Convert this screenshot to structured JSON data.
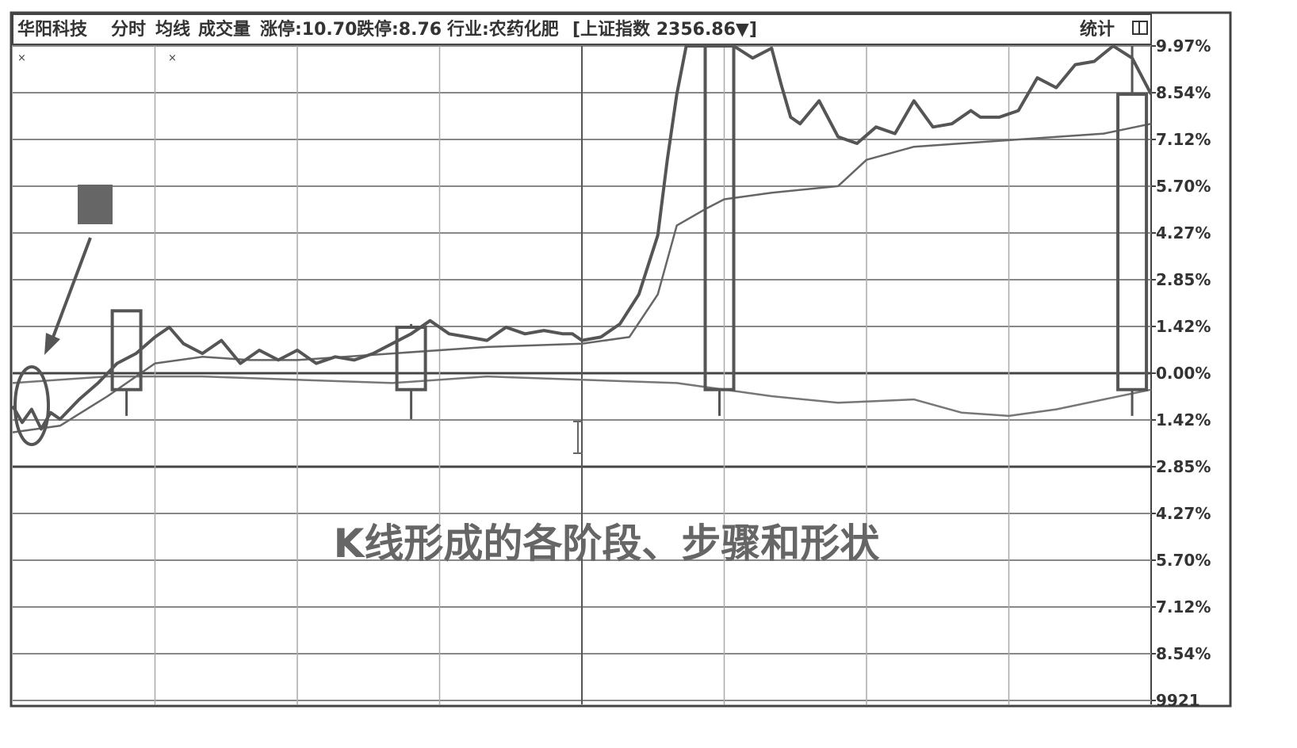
{
  "header": {
    "stock_name": "华阳科技",
    "tabs": [
      "分时",
      "均线",
      "成交量"
    ],
    "limit_up": "涨停:10.70",
    "limit_down": "跌停:8.76",
    "industry": "行业:农药化肥",
    "index": "[上证指数 2356.86▼]",
    "stats_label": "统计"
  },
  "caption": "K线形成的各阶段、步骤和形状",
  "chart_data": {
    "type": "line",
    "title": "",
    "y_tick_labels": [
      "9.97%",
      "8.54%",
      "7.12%",
      "5.70%",
      "4.27%",
      "2.85%",
      "1.42%",
      "0.00%",
      "1.42%",
      "2.85%",
      "4.27%",
      "5.70%",
      "7.12%",
      "8.54%",
      "9921"
    ],
    "ylim": [
      -9.97,
      9.97
    ],
    "xlim": [
      0,
      240
    ],
    "grid": true,
    "series": [
      {
        "style": "price",
        "points": [
          [
            0,
            -1.0
          ],
          [
            2,
            -1.5
          ],
          [
            4,
            -1.1
          ],
          [
            6,
            -1.7
          ],
          [
            8,
            -1.2
          ],
          [
            10,
            -1.4
          ],
          [
            14,
            -0.8
          ],
          [
            18,
            -0.3
          ],
          [
            22,
            0.3
          ],
          [
            26,
            0.6
          ],
          [
            30,
            1.1
          ],
          [
            33,
            1.4
          ],
          [
            36,
            0.9
          ],
          [
            40,
            0.6
          ],
          [
            44,
            1.0
          ],
          [
            48,
            0.3
          ],
          [
            52,
            0.7
          ],
          [
            56,
            0.4
          ],
          [
            60,
            0.7
          ],
          [
            64,
            0.3
          ],
          [
            68,
            0.5
          ],
          [
            72,
            0.4
          ],
          [
            76,
            0.6
          ],
          [
            80,
            0.9
          ],
          [
            84,
            1.2
          ],
          [
            88,
            1.6
          ],
          [
            92,
            1.2
          ],
          [
            96,
            1.1
          ],
          [
            100,
            1.0
          ],
          [
            104,
            1.4
          ],
          [
            108,
            1.2
          ],
          [
            112,
            1.3
          ],
          [
            116,
            1.2
          ],
          [
            118,
            1.2
          ],
          [
            120,
            1.0
          ],
          [
            124,
            1.1
          ],
          [
            128,
            1.5
          ],
          [
            132,
            2.4
          ],
          [
            136,
            4.2
          ],
          [
            138,
            6.5
          ],
          [
            140,
            8.5
          ],
          [
            142,
            9.97
          ],
          [
            149,
            9.97
          ],
          [
            152,
            9.97
          ],
          [
            156,
            9.6
          ],
          [
            160,
            9.9
          ],
          [
            162,
            8.8
          ],
          [
            164,
            7.8
          ],
          [
            166,
            7.6
          ],
          [
            170,
            8.3
          ],
          [
            174,
            7.2
          ],
          [
            178,
            7.0
          ],
          [
            182,
            7.5
          ],
          [
            186,
            7.3
          ],
          [
            190,
            8.3
          ],
          [
            194,
            7.5
          ],
          [
            198,
            7.6
          ],
          [
            202,
            8.0
          ],
          [
            204,
            7.8
          ],
          [
            208,
            7.8
          ],
          [
            212,
            8.0
          ],
          [
            216,
            9.0
          ],
          [
            220,
            8.7
          ],
          [
            224,
            9.4
          ],
          [
            228,
            9.5
          ],
          [
            232,
            9.97
          ],
          [
            236,
            9.6
          ],
          [
            240,
            8.5
          ]
        ]
      },
      {
        "style": "average",
        "points": [
          [
            0,
            -1.8
          ],
          [
            10,
            -1.6
          ],
          [
            20,
            -0.7
          ],
          [
            30,
            0.3
          ],
          [
            40,
            0.5
          ],
          [
            50,
            0.4
          ],
          [
            60,
            0.4
          ],
          [
            80,
            0.6
          ],
          [
            100,
            0.8
          ],
          [
            120,
            0.9
          ],
          [
            130,
            1.1
          ],
          [
            136,
            2.4
          ],
          [
            140,
            4.5
          ],
          [
            146,
            5.0
          ],
          [
            150,
            5.3
          ],
          [
            160,
            5.5
          ],
          [
            174,
            5.7
          ],
          [
            180,
            6.5
          ],
          [
            190,
            6.9
          ],
          [
            200,
            7.0
          ],
          [
            210,
            7.1
          ],
          [
            220,
            7.2
          ],
          [
            230,
            7.3
          ],
          [
            240,
            7.6
          ]
        ]
      },
      {
        "style": "index",
        "points": [
          [
            0,
            -0.3
          ],
          [
            20,
            -0.1
          ],
          [
            40,
            -0.1
          ],
          [
            60,
            -0.2
          ],
          [
            80,
            -0.3
          ],
          [
            100,
            -0.1
          ],
          [
            120,
            -0.2
          ],
          [
            140,
            -0.3
          ],
          [
            160,
            -0.7
          ],
          [
            174,
            -0.9
          ],
          [
            190,
            -0.8
          ],
          [
            200,
            -1.2
          ],
          [
            210,
            -1.3
          ],
          [
            220,
            -1.1
          ],
          [
            230,
            -0.8
          ],
          [
            240,
            -0.5
          ]
        ]
      }
    ],
    "candles": [
      {
        "x": 24,
        "open": -0.5,
        "close": 1.9,
        "high": 1.9,
        "low": -1.3
      },
      {
        "x": 84,
        "open": -0.5,
        "close": 1.4,
        "high": 1.5,
        "low": -1.4
      },
      {
        "x": 149,
        "open": -0.5,
        "close": 9.97,
        "high": 9.97,
        "low": -1.3
      },
      {
        "x": 236,
        "open": -0.5,
        "close": 8.5,
        "high": 9.97,
        "low": -1.3
      }
    ]
  }
}
